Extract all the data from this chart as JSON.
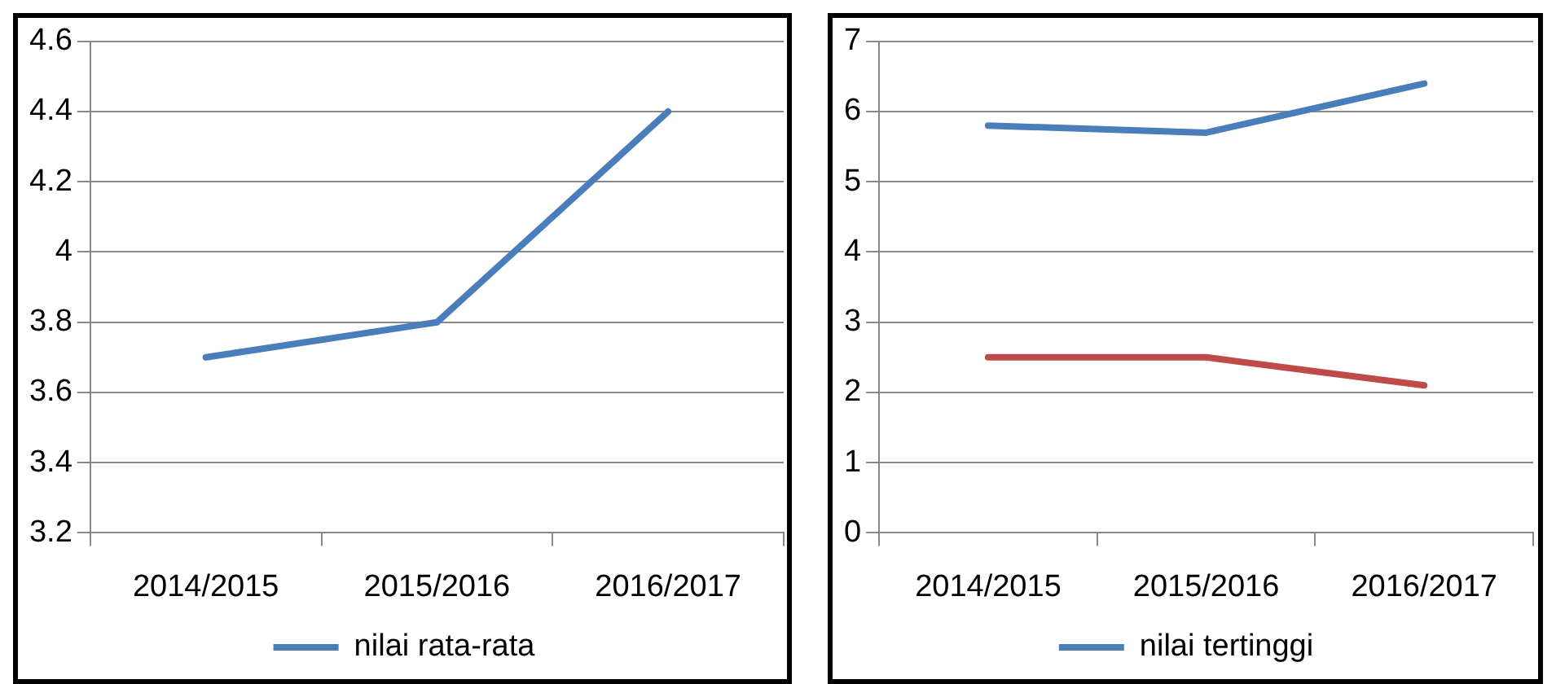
{
  "chart_data": [
    {
      "type": "line",
      "categories": [
        "2014/2015",
        "2015/2016",
        "2016/2017"
      ],
      "ylim": [
        3.2,
        4.6
      ],
      "yticks": [
        3.2,
        3.4,
        3.6,
        3.8,
        4,
        4.2,
        4.4,
        4.6
      ],
      "grid": "y",
      "legend": "bottom",
      "marker": "none",
      "line_style": "solid",
      "series": [
        {
          "name": "nilai rata-rata",
          "color": "#4a7ebb",
          "values": [
            3.7,
            3.8,
            4.4
          ]
        }
      ]
    },
    {
      "type": "line",
      "categories": [
        "2014/2015",
        "2015/2016",
        "2016/2017"
      ],
      "ylim": [
        0,
        7
      ],
      "yticks": [
        0,
        1,
        2,
        3,
        4,
        5,
        6,
        7
      ],
      "grid": "y",
      "legend": "bottom",
      "marker": "none",
      "line_style": "solid",
      "series": [
        {
          "name": "nilai tertinggi",
          "color": "#4a7ebb",
          "values": [
            5.8,
            5.7,
            6.4
          ]
        },
        {
          "color": "#be4b48",
          "values": [
            2.5,
            2.5,
            2.1
          ]
        }
      ]
    }
  ]
}
